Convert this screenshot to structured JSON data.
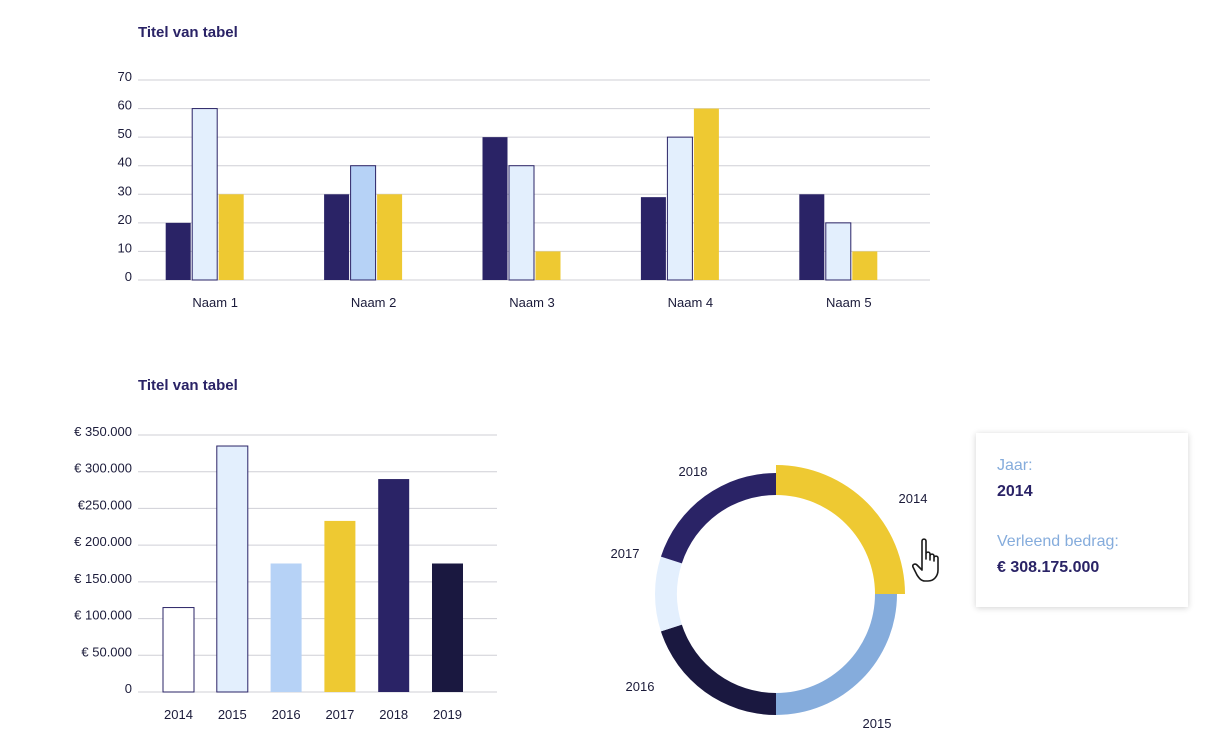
{
  "chart_data": [
    {
      "type": "bar",
      "title": "Titel van tabel",
      "categories": [
        "Naam 1",
        "Naam 2",
        "Naam 3",
        "Naam 4",
        "Naam 5"
      ],
      "ylim": [
        0,
        70
      ],
      "yticks": [
        "0",
        "10",
        "20",
        "30",
        "40",
        "50",
        "60",
        "70"
      ],
      "grid": true,
      "series": [
        {
          "values": [
            20,
            30,
            50,
            29,
            30
          ],
          "color": "#2a2366"
        },
        {
          "values": [
            60,
            40,
            40,
            50,
            20
          ],
          "color": "#e3effd",
          "colors": [
            "#e3effd",
            "#b6d2f6",
            "#e3effd",
            "#e3effd",
            "#e3effd"
          ]
        },
        {
          "values": [
            30,
            30,
            10,
            60,
            10
          ],
          "color": "#eec932"
        }
      ]
    },
    {
      "type": "bar",
      "title": "Titel van tabel",
      "categories": [
        "2014",
        "2015",
        "2016",
        "2017",
        "2018",
        "2019"
      ],
      "values": [
        115000,
        335000,
        175000,
        233000,
        290000,
        175000
      ],
      "colors": [
        "#ffffff",
        "#e3effd",
        "#b6d2f6",
        "#eec932",
        "#2a2366",
        "#1a1840"
      ],
      "ylim": [
        0,
        350000
      ],
      "yticks": [
        "0",
        "€ 50.000",
        "€ 100.000",
        "€ 150.000",
        "€ 200.000",
        "€250.000",
        "€ 300.000",
        "€ 350.000"
      ],
      "grid": true
    },
    {
      "type": "pie",
      "style": "donut",
      "labels": [
        "2014",
        "2015",
        "2016",
        "2017",
        "2018"
      ],
      "values": [
        25,
        25,
        20,
        10,
        20
      ],
      "colors": [
        "#eec932",
        "#85acdc",
        "#1a1840",
        "#e3effd",
        "#2a2366"
      ]
    }
  ],
  "tooltip": {
    "year_label": "Jaar:",
    "year_value": "2014",
    "amount_label": "Verleend bedrag:",
    "amount_value": "€ 308.175.000"
  },
  "icons": {
    "cursor": "hand-pointer-icon"
  }
}
